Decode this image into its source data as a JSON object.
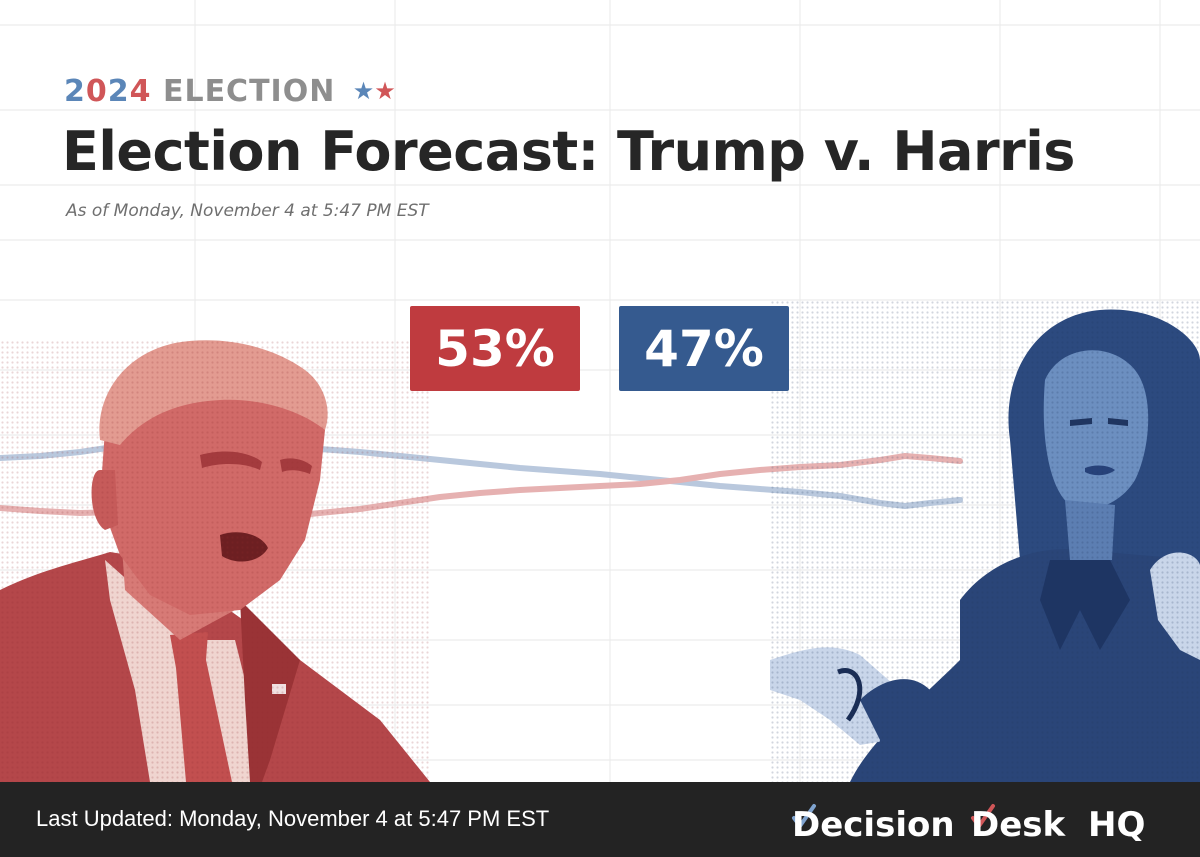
{
  "header": {
    "year": "2024",
    "year_digits": [
      "2",
      "0",
      "2",
      "4"
    ],
    "election_label": "ELECTION",
    "stars": "★★",
    "title": "Election Forecast: Trump v. Harris",
    "as_of": "As of Monday, November 4 at 5:47 PM EST"
  },
  "forecast": {
    "trump_pct": "53%",
    "harris_pct": "47%"
  },
  "colors": {
    "republican": "#bf3b3f",
    "democrat": "#355a8f",
    "trend_republican": "#e6b1b1",
    "trend_democrat": "#b9c8dd"
  },
  "footer": {
    "last_updated": "Last Updated: Monday, November 4 at 5:47 PM EST",
    "brand": "Decision Desk HQ",
    "brand_parts": [
      "Decision",
      "Desk",
      "HQ"
    ]
  },
  "images": {
    "left_portrait": "photo-portrait-trump",
    "right_portrait": "photo-portrait-harris"
  }
}
